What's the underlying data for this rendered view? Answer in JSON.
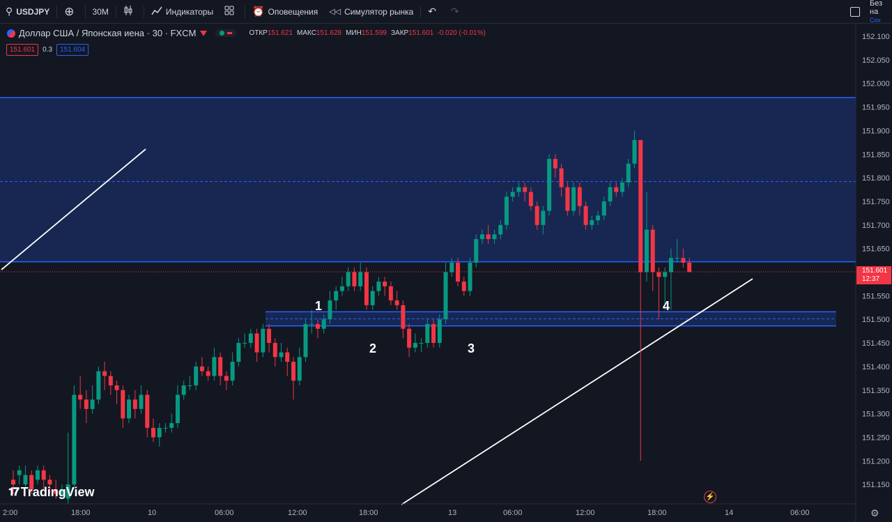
{
  "toolbar": {
    "symbol": "USDJPY",
    "add_icon": "plus-circle-icon",
    "interval": "30M",
    "chart_type_icon": "candles-icon",
    "indicators_label": "Индикаторы",
    "layouts_icon": "grid-icon",
    "alerts_label": "Оповещения",
    "replay_label": "Симулятор рынка",
    "right_label": "Без на",
    "right_sub": "Сох"
  },
  "legend": {
    "title": "Доллар США / Японская иена · 30 · FXCM",
    "open_label": "ОТКР",
    "open": "151.621",
    "high_label": "МАКС",
    "high": "151.628",
    "low_label": "МИН",
    "low": "151.599",
    "close_label": "ЗАКР",
    "close": "151.601",
    "change": "-0.020 (-0.01%)",
    "sell": "151.601",
    "spread": "0.3",
    "buy": "151.604"
  },
  "last_price": {
    "price": "151.601",
    "countdown": "12:37"
  },
  "brand": "TradingView",
  "colors": {
    "up": "#089981",
    "down": "#f23645",
    "zone": "#2962ff",
    "background": "#131722"
  },
  "chart_data": {
    "type": "candlestick",
    "y_axis_labels": [
      "152.100",
      "152.050",
      "152.000",
      "151.950",
      "151.900",
      "151.850",
      "151.800",
      "151.750",
      "151.700",
      "151.650",
      "151.600",
      "151.550",
      "151.500",
      "151.450",
      "151.400",
      "151.350",
      "151.300",
      "151.250",
      "151.200",
      "151.150"
    ],
    "x_axis_labels": [
      "2:00",
      "18:00",
      "10",
      "06:00",
      "12:00",
      "18:00",
      "13",
      "06:00",
      "12:00",
      "18:00",
      "14",
      "06:00"
    ],
    "ylim": [
      151.13,
      152.13
    ],
    "zones": [
      {
        "top": 151.97,
        "bottom": 151.622,
        "mid": 151.792
      },
      {
        "top": 151.516,
        "bottom": 151.486,
        "mid": 151.501
      }
    ],
    "wave_labels": [
      "1",
      "2",
      "3",
      "4"
    ],
    "candles": [
      [
        151.16,
        151.15,
        151.18,
        151.13
      ],
      [
        151.17,
        151.18,
        151.19,
        151.15
      ],
      [
        151.15,
        151.17,
        151.19,
        151.14
      ],
      [
        151.17,
        151.14,
        151.18,
        151.13
      ],
      [
        151.16,
        151.18,
        151.19,
        151.15
      ],
      [
        151.18,
        151.16,
        151.19,
        151.14
      ],
      [
        151.16,
        151.15,
        151.17,
        151.13
      ],
      [
        151.14,
        151.13,
        151.16,
        151.12
      ],
      [
        151.13,
        151.14,
        151.15,
        151.12
      ],
      [
        151.12,
        151.15,
        151.26,
        151.11
      ],
      [
        151.15,
        151.34,
        151.36,
        151.14
      ],
      [
        151.34,
        151.33,
        151.38,
        151.31
      ],
      [
        151.33,
        151.31,
        151.35,
        151.28
      ],
      [
        151.31,
        151.33,
        151.36,
        151.3
      ],
      [
        151.33,
        151.39,
        151.4,
        151.32
      ],
      [
        151.39,
        151.38,
        151.41,
        151.35
      ],
      [
        151.38,
        151.36,
        151.39,
        151.34
      ],
      [
        151.36,
        151.35,
        151.37,
        151.32
      ],
      [
        151.35,
        151.29,
        151.36,
        151.27
      ],
      [
        151.29,
        151.33,
        151.34,
        151.28
      ],
      [
        151.33,
        151.31,
        151.35,
        151.29
      ],
      [
        151.31,
        151.34,
        151.36,
        151.3
      ],
      [
        151.34,
        151.27,
        151.35,
        151.25
      ],
      [
        151.27,
        151.25,
        151.29,
        151.24
      ],
      [
        151.25,
        151.27,
        151.28,
        151.23
      ],
      [
        151.27,
        151.27,
        151.28,
        151.26
      ],
      [
        151.27,
        151.28,
        151.3,
        151.26
      ],
      [
        151.28,
        151.34,
        151.36,
        151.27
      ],
      [
        151.34,
        151.36,
        151.37,
        151.33
      ],
      [
        151.36,
        151.36,
        151.38,
        151.35
      ],
      [
        151.36,
        151.4,
        151.41,
        151.35
      ],
      [
        151.4,
        151.39,
        151.42,
        151.38
      ],
      [
        151.39,
        151.38,
        151.4,
        151.37
      ],
      [
        151.38,
        151.42,
        151.44,
        151.37
      ],
      [
        151.42,
        151.38,
        151.43,
        151.36
      ],
      [
        151.38,
        151.37,
        151.39,
        151.35
      ],
      [
        151.37,
        151.41,
        151.43,
        151.36
      ],
      [
        151.41,
        151.45,
        151.46,
        151.4
      ],
      [
        151.45,
        151.45,
        151.47,
        151.44
      ],
      [
        151.45,
        151.47,
        151.48,
        151.44
      ],
      [
        151.47,
        151.43,
        151.48,
        151.41
      ],
      [
        151.43,
        151.48,
        151.49,
        151.42
      ],
      [
        151.48,
        151.45,
        151.49,
        151.43
      ],
      [
        151.45,
        151.42,
        151.46,
        151.4
      ],
      [
        151.42,
        151.43,
        151.45,
        151.41
      ],
      [
        151.43,
        151.41,
        151.44,
        151.38
      ],
      [
        151.41,
        151.37,
        151.42,
        151.33
      ],
      [
        151.37,
        151.42,
        151.44,
        151.36
      ],
      [
        151.42,
        151.49,
        151.5,
        151.41
      ],
      [
        151.49,
        151.49,
        151.52,
        151.47
      ],
      [
        151.49,
        151.48,
        151.5,
        151.46
      ],
      [
        151.48,
        151.5,
        151.51,
        151.47
      ],
      [
        151.5,
        151.54,
        151.56,
        151.49
      ],
      [
        151.54,
        151.56,
        151.57,
        151.52
      ],
      [
        151.56,
        151.57,
        151.59,
        151.55
      ],
      [
        151.57,
        151.6,
        151.61,
        151.56
      ],
      [
        151.6,
        151.57,
        151.61,
        151.56
      ],
      [
        151.57,
        151.6,
        151.62,
        151.56
      ],
      [
        151.6,
        151.53,
        151.61,
        151.52
      ],
      [
        151.53,
        151.56,
        151.57,
        151.52
      ],
      [
        151.56,
        151.58,
        151.59,
        151.55
      ],
      [
        151.58,
        151.57,
        151.59,
        151.55
      ],
      [
        151.57,
        151.54,
        151.58,
        151.53
      ],
      [
        151.54,
        151.53,
        151.56,
        151.52
      ],
      [
        151.53,
        151.48,
        151.54,
        151.46
      ],
      [
        151.48,
        151.44,
        151.49,
        151.42
      ],
      [
        151.44,
        151.45,
        151.47,
        151.43
      ],
      [
        151.45,
        151.45,
        151.46,
        151.43
      ],
      [
        151.45,
        151.49,
        151.5,
        151.44
      ],
      [
        151.49,
        151.45,
        151.5,
        151.44
      ],
      [
        151.45,
        151.5,
        151.51,
        151.44
      ],
      [
        151.5,
        151.6,
        151.62,
        151.49
      ],
      [
        151.6,
        151.62,
        151.63,
        151.59
      ],
      [
        151.62,
        151.58,
        151.63,
        151.57
      ],
      [
        151.58,
        151.56,
        151.59,
        151.55
      ],
      [
        151.56,
        151.62,
        151.63,
        151.55
      ],
      [
        151.62,
        151.67,
        151.68,
        151.61
      ],
      [
        151.67,
        151.68,
        151.69,
        151.66
      ],
      [
        151.68,
        151.67,
        151.7,
        151.66
      ],
      [
        151.67,
        151.68,
        151.69,
        151.66
      ],
      [
        151.68,
        151.7,
        151.71,
        151.67
      ],
      [
        151.7,
        151.76,
        151.77,
        151.69
      ],
      [
        151.76,
        151.77,
        151.78,
        151.75
      ],
      [
        151.77,
        151.78,
        151.79,
        151.76
      ],
      [
        151.78,
        151.77,
        151.79,
        151.75
      ],
      [
        151.77,
        151.74,
        151.78,
        151.73
      ],
      [
        151.74,
        151.7,
        151.75,
        151.69
      ],
      [
        151.7,
        151.73,
        151.74,
        151.68
      ],
      [
        151.73,
        151.84,
        151.85,
        151.72
      ],
      [
        151.84,
        151.82,
        151.85,
        151.8
      ],
      [
        151.82,
        151.78,
        151.83,
        151.76
      ],
      [
        151.78,
        151.73,
        151.79,
        151.72
      ],
      [
        151.73,
        151.78,
        151.79,
        151.72
      ],
      [
        151.78,
        151.74,
        151.79,
        151.72
      ],
      [
        151.74,
        151.7,
        151.75,
        151.69
      ],
      [
        151.7,
        151.71,
        151.72,
        151.69
      ],
      [
        151.71,
        151.72,
        151.73,
        151.7
      ],
      [
        151.72,
        151.75,
        151.76,
        151.71
      ],
      [
        151.75,
        151.78,
        151.79,
        151.74
      ],
      [
        151.78,
        151.77,
        151.79,
        151.76
      ],
      [
        151.77,
        151.79,
        151.8,
        151.76
      ],
      [
        151.79,
        151.83,
        151.84,
        151.78
      ],
      [
        151.83,
        151.88,
        151.9,
        151.82
      ],
      [
        151.88,
        151.6,
        151.88,
        151.2
      ],
      [
        151.6,
        151.69,
        151.77,
        151.58
      ],
      [
        151.69,
        151.6,
        151.7,
        151.56
      ],
      [
        151.6,
        151.59,
        151.61,
        151.5
      ],
      [
        151.59,
        151.6,
        151.61,
        151.52
      ],
      [
        151.6,
        151.63,
        151.65,
        151.52
      ],
      [
        151.63,
        151.63,
        151.67,
        151.62
      ],
      [
        151.63,
        151.62,
        151.65,
        151.61
      ],
      [
        151.62,
        151.6,
        151.63,
        151.6
      ]
    ]
  }
}
